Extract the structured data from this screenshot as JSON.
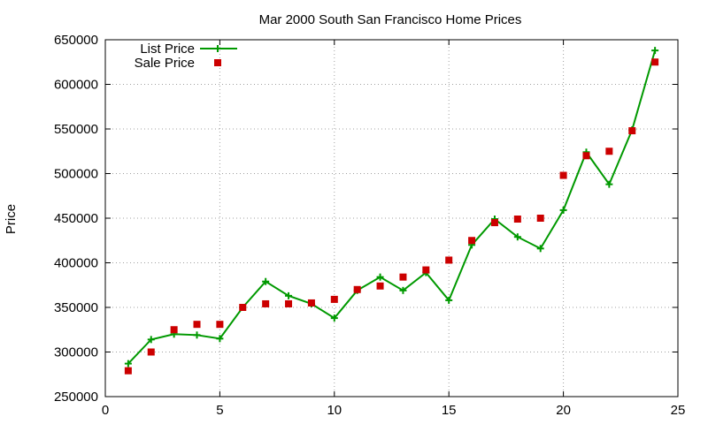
{
  "chart_data": {
    "type": "line",
    "title": "Mar 2000 South San Francisco Home Prices",
    "xlabel": "",
    "ylabel": "Price",
    "xlim": [
      0,
      25
    ],
    "ylim": [
      250000,
      650000
    ],
    "xticks": [
      0,
      5,
      10,
      15,
      20,
      25
    ],
    "yticks": [
      250000,
      300000,
      350000,
      400000,
      450000,
      500000,
      550000,
      600000,
      650000
    ],
    "grid": true,
    "legend": "top-left",
    "series": [
      {
        "name": "List Price",
        "style": "line-plus",
        "color": "#009900",
        "x": [
          1,
          2,
          3,
          4,
          5,
          6,
          7,
          8,
          9,
          10,
          11,
          12,
          13,
          14,
          15,
          16,
          17,
          18,
          19,
          20,
          21,
          22,
          23,
          24
        ],
        "y": [
          287000,
          314000,
          320000,
          319000,
          315000,
          350000,
          379000,
          363000,
          354000,
          338000,
          369000,
          384000,
          369000,
          389000,
          358000,
          420000,
          449000,
          429000,
          416000,
          459000,
          524000,
          488000,
          549000,
          638000
        ]
      },
      {
        "name": "Sale Price",
        "style": "square",
        "color": "#cc0000",
        "x": [
          1,
          2,
          3,
          4,
          5,
          6,
          7,
          8,
          9,
          10,
          11,
          12,
          13,
          14,
          15,
          16,
          17,
          18,
          19,
          20,
          21,
          22,
          23,
          24
        ],
        "y": [
          279000,
          300000,
          325000,
          331000,
          331000,
          350000,
          354000,
          354000,
          355000,
          359000,
          370000,
          374000,
          384000,
          392000,
          403000,
          425000,
          445000,
          449000,
          450000,
          498000,
          520000,
          525000,
          548000,
          625000
        ]
      }
    ]
  }
}
